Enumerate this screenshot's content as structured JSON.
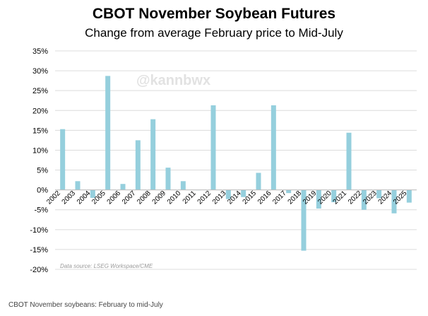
{
  "chart_data": {
    "type": "bar",
    "title": "CBOT November Soybean Futures",
    "subtitle": "Change from average February price to Mid-July",
    "xlabel": "",
    "ylabel": "",
    "ylim": [
      -20,
      35
    ],
    "yticks": [
      -20,
      -15,
      -10,
      -5,
      0,
      5,
      10,
      15,
      20,
      25,
      30,
      35
    ],
    "ytick_labels": [
      "-20%",
      "-15%",
      "-10%",
      "-5%",
      "0%",
      "5%",
      "10%",
      "15%",
      "20%",
      "25%",
      "30%",
      "35%"
    ],
    "grid": true,
    "categories": [
      "2002",
      "2003",
      "2004",
      "2005",
      "2006",
      "2007",
      "2008",
      "2009",
      "2010",
      "2011",
      "2012",
      "2013",
      "2014",
      "2015",
      "2016",
      "2017",
      "2018",
      "2019",
      "2020",
      "2021",
      "2022",
      "2023",
      "2024",
      "2025"
    ],
    "values": [
      15.3,
      2.2,
      -2.0,
      28.7,
      1.5,
      12.5,
      17.8,
      5.6,
      2.2,
      0.0,
      21.3,
      -2.3,
      -1.8,
      4.3,
      21.3,
      -0.8,
      -15.3,
      -4.7,
      -3.1,
      14.4,
      -5.0,
      -2.1,
      -5.9,
      -3.2
    ],
    "bar_color": "#95cfdd",
    "watermark": "@kannbwx",
    "source_note": "Data source: LSEG Workspace/CME"
  },
  "caption": "CBOT November soybeans: February to mid-July"
}
